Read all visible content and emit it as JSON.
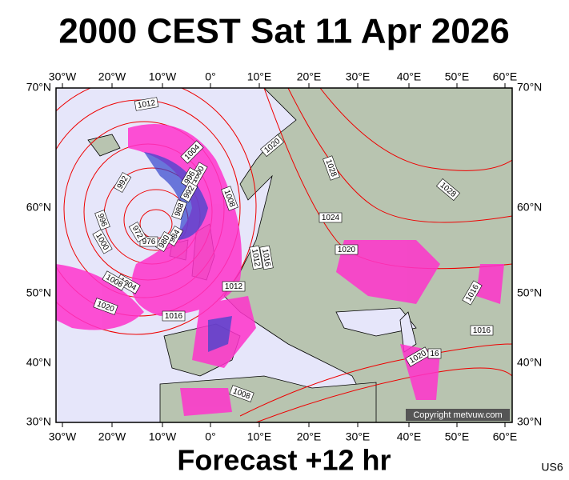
{
  "title": "2000 CEST Sat 11 Apr 2026",
  "lon_labels": [
    "30°W",
    "20°W",
    "10°W",
    "0°",
    "10°E",
    "20°E",
    "30°E",
    "40°E",
    "50°E",
    "60°E"
  ],
  "lat_labels": [
    "70°N",
    "60°N",
    "50°N",
    "40°N",
    "30°N"
  ],
  "isobar_labels": [
    "1012",
    "1020",
    "1004",
    "1000",
    "996",
    "992",
    "992",
    "1028",
    "1008",
    "1028",
    "988",
    "1024",
    "996",
    "984",
    "980",
    "976",
    "972",
    "1000",
    "1020",
    "1016",
    "1012",
    "1004",
    "1008",
    "1012",
    "1016",
    "1020",
    "1016",
    "1016",
    "1020",
    "16",
    "1008"
  ],
  "copyright": "Copyright metvuw.com",
  "footer": "Forecast +12 hr",
  "code": "US6"
}
